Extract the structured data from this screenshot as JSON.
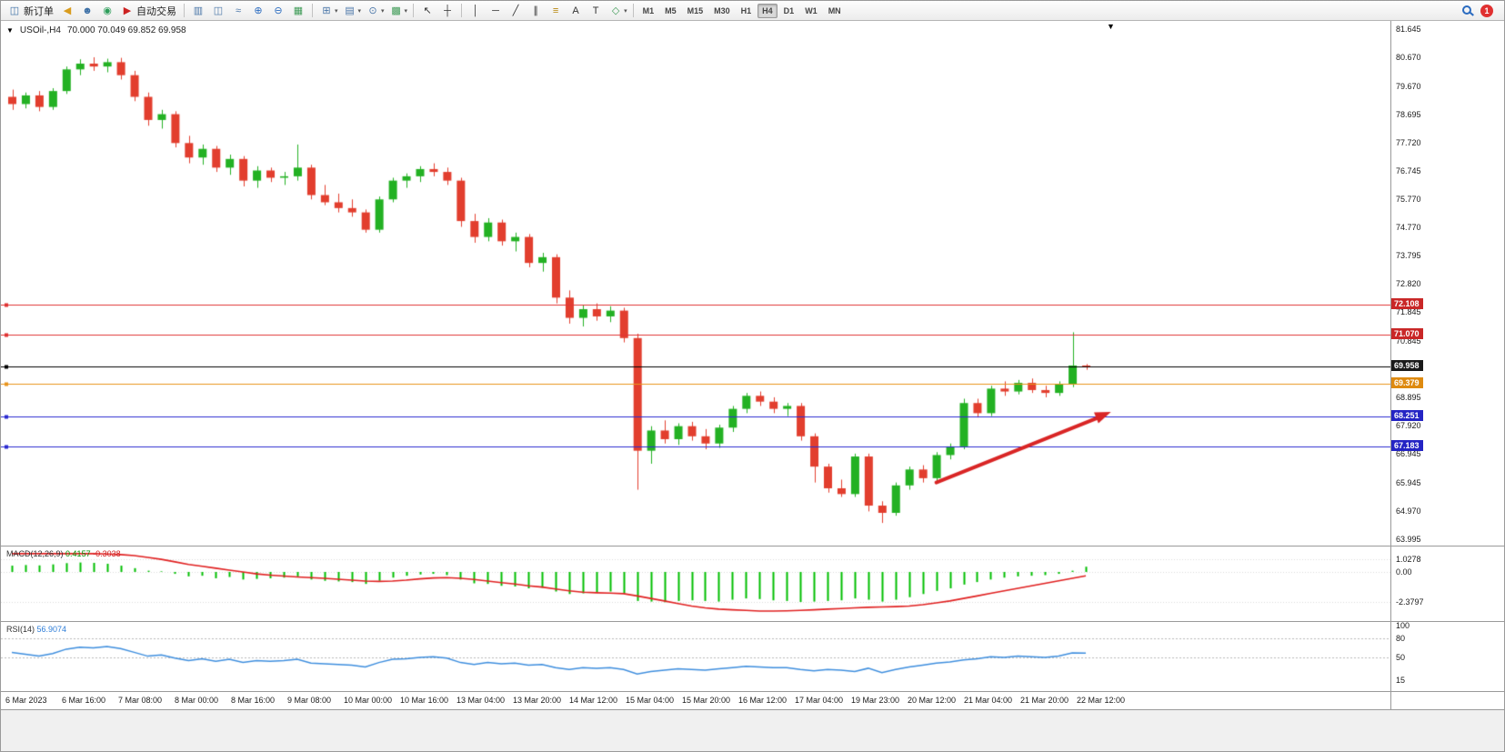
{
  "toolbar": {
    "caret_glyph": "▾",
    "notification_count": "1",
    "timeframes": [
      "M1",
      "M5",
      "M15",
      "M30",
      "H1",
      "H4",
      "D1",
      "W1",
      "MN"
    ],
    "active_timeframe": "H4",
    "items": [
      {
        "kind": "button",
        "name": "new-order-button",
        "icon_name": "new-order-icon",
        "glyph": "◫",
        "color": "#3a6ea5",
        "label": "新订单"
      },
      {
        "kind": "icon",
        "name": "news-horn-icon",
        "glyph": "◀",
        "color": "#d99c1e"
      },
      {
        "kind": "icon",
        "name": "profile-icon",
        "glyph": "☻",
        "color": "#3a6ea5"
      },
      {
        "kind": "icon",
        "name": "community-icon",
        "glyph": "◉",
        "color": "#2e9e5b"
      },
      {
        "kind": "button",
        "name": "autotrading-button",
        "icon_name": "autotrading-icon",
        "glyph": "▶",
        "color": "#cc2222",
        "label": "自动交易"
      },
      {
        "kind": "sep"
      },
      {
        "kind": "icon",
        "name": "bar-chart-icon",
        "glyph": "▥",
        "color": "#4a76a8"
      },
      {
        "kind": "icon",
        "name": "candlestick-chart-icon",
        "glyph": "◫",
        "color": "#4a76a8"
      },
      {
        "kind": "icon",
        "name": "line-chart-icon",
        "glyph": "≈",
        "color": "#4a76a8"
      },
      {
        "kind": "icon",
        "name": "zoom-in-icon",
        "glyph": "⊕",
        "color": "#2a6bc0"
      },
      {
        "kind": "icon",
        "name": "zoom-out-icon",
        "glyph": "⊖",
        "color": "#2a6bc0"
      },
      {
        "kind": "icon",
        "name": "tile-windows-icon",
        "glyph": "▦",
        "color": "#3f9b57"
      },
      {
        "kind": "sep"
      },
      {
        "kind": "icon",
        "name": "new-chart-icon",
        "glyph": "⊞",
        "color": "#4a76a8",
        "caret": true
      },
      {
        "kind": "icon",
        "name": "profiles-icon",
        "glyph": "▤",
        "color": "#4a76a8",
        "caret": true
      },
      {
        "kind": "icon",
        "name": "periods-icon",
        "glyph": "⊙",
        "color": "#4a76a8",
        "caret": true
      },
      {
        "kind": "icon",
        "name": "indicators-icon",
        "glyph": "▩",
        "color": "#3f9b57",
        "caret": true
      },
      {
        "kind": "sep"
      },
      {
        "kind": "icon",
        "name": "cursor-icon",
        "glyph": "↖",
        "color": "#333333"
      },
      {
        "kind": "icon",
        "name": "crosshair-icon",
        "glyph": "┼",
        "color": "#333333"
      },
      {
        "kind": "sep"
      },
      {
        "kind": "icon",
        "name": "vertical-line-icon",
        "glyph": "│",
        "color": "#333333"
      },
      {
        "kind": "icon",
        "name": "horizontal-line-icon",
        "glyph": "─",
        "color": "#333333"
      },
      {
        "kind": "icon",
        "name": "trendline-icon",
        "glyph": "╱",
        "color": "#333333"
      },
      {
        "kind": "icon",
        "name": "equidistant-channel-icon",
        "glyph": "∥",
        "color": "#333333"
      },
      {
        "kind": "icon",
        "name": "fibonacci-icon",
        "glyph": "≡",
        "color": "#b8860b"
      },
      {
        "kind": "icon",
        "name": "text-icon",
        "glyph": "A",
        "color": "#333333"
      },
      {
        "kind": "icon",
        "name": "text-label-icon",
        "glyph": "T",
        "color": "#333333"
      },
      {
        "kind": "icon",
        "name": "arrows-icon",
        "glyph": "◇",
        "color": "#3f9b57",
        "caret": true
      },
      {
        "kind": "sep"
      },
      {
        "kind": "timeframes"
      },
      {
        "kind": "spacer"
      },
      {
        "kind": "search"
      },
      {
        "kind": "badge"
      }
    ]
  },
  "chart": {
    "title": "USOil-,H4",
    "ohlc": "70.000 70.049 69.852 69.958",
    "window_caret": "▼",
    "scroll_marker": "▼"
  },
  "macd": {
    "name": "MACD(12,26,9)",
    "value_main": "0.4157",
    "value_signal": "-0.3038",
    "axis_labels": [
      "1.0278",
      "0.00",
      "-2.3797"
    ]
  },
  "rsi": {
    "name": "RSI(14)",
    "value": "56.9074",
    "axis_labels": [
      "100",
      "80",
      "50",
      "15"
    ],
    "levels": [
      80,
      50
    ]
  },
  "chart_data": {
    "type": "candlestick",
    "symbol": "USOil-",
    "timeframe": "H4",
    "colors": {
      "up": "#23b123",
      "down": "#e23e2e"
    },
    "price_axis_labels": [
      "81.645",
      "80.670",
      "79.670",
      "78.695",
      "77.720",
      "76.745",
      "75.770",
      "74.770",
      "73.795",
      "72.820",
      "71.845",
      "70.845",
      "68.895",
      "67.920",
      "66.945",
      "65.945",
      "64.970",
      "63.995"
    ],
    "hlines": [
      {
        "price": 72.108,
        "label": "72.108",
        "color": "#e03434",
        "box_color": "#c92727"
      },
      {
        "price": 71.07,
        "label": "71.070",
        "color": "#e03434",
        "box_color": "#c92727"
      },
      {
        "price": 69.958,
        "label": "69.958",
        "color": "#000000",
        "box_color": "#1a1a1a"
      },
      {
        "price": 69.379,
        "label": "69.379",
        "color": "#e8941c",
        "box_color": "#de8a10"
      },
      {
        "price": 68.251,
        "label": "68.251",
        "color": "#2a2ad0",
        "box_color": "#2424c4"
      },
      {
        "price": 67.183,
        "label": "67.183",
        "color": "#2a2ad0",
        "box_color": "#2424c4"
      }
    ],
    "trend_arrow": {
      "from_bar": 68,
      "from_price": 65.95,
      "to_bar": 80.6,
      "to_price": 68.35,
      "color": "#d92525",
      "width": 4
    },
    "time_labels": [
      "6 Mar 2023",
      "6 Mar 16:00",
      "7 Mar 08:00",
      "8 Mar 00:00",
      "8 Mar 16:00",
      "9 Mar 08:00",
      "10 Mar 00:00",
      "10 Mar 16:00",
      "13 Mar 04:00",
      "13 Mar 20:00",
      "14 Mar 12:00",
      "15 Mar 04:00",
      "15 Mar 20:00",
      "16 Mar 12:00",
      "17 Mar 04:00",
      "19 Mar 23:00",
      "20 Mar 12:00",
      "21 Mar 04:00",
      "21 Mar 20:00",
      "22 Mar 12:00"
    ],
    "candles": [
      [
        79.3,
        79.55,
        78.85,
        79.05
      ],
      [
        79.05,
        79.45,
        78.9,
        79.35
      ],
      [
        79.35,
        79.5,
        78.8,
        78.95
      ],
      [
        78.95,
        79.6,
        78.85,
        79.5
      ],
      [
        79.5,
        80.35,
        79.4,
        80.25
      ],
      [
        80.25,
        80.6,
        80.05,
        80.45
      ],
      [
        80.45,
        80.67,
        80.2,
        80.35
      ],
      [
        80.35,
        80.62,
        80.15,
        80.5
      ],
      [
        80.5,
        80.65,
        79.9,
        80.05
      ],
      [
        80.05,
        80.2,
        79.15,
        79.3
      ],
      [
        79.3,
        79.45,
        78.3,
        78.5
      ],
      [
        78.5,
        78.85,
        78.2,
        78.7
      ],
      [
        78.7,
        78.8,
        77.55,
        77.7
      ],
      [
        77.7,
        77.95,
        77.0,
        77.2
      ],
      [
        77.2,
        77.65,
        76.95,
        77.5
      ],
      [
        77.5,
        77.6,
        76.7,
        76.85
      ],
      [
        76.85,
        77.3,
        76.6,
        77.15
      ],
      [
        77.15,
        77.25,
        76.2,
        76.4
      ],
      [
        76.4,
        76.9,
        76.15,
        76.75
      ],
      [
        76.75,
        76.85,
        76.35,
        76.5
      ],
      [
        76.5,
        76.7,
        76.25,
        76.55
      ],
      [
        76.55,
        77.65,
        76.4,
        76.85
      ],
      [
        76.85,
        76.95,
        75.75,
        75.9
      ],
      [
        75.9,
        76.25,
        75.55,
        75.65
      ],
      [
        75.65,
        75.95,
        75.3,
        75.45
      ],
      [
        75.45,
        75.75,
        75.15,
        75.3
      ],
      [
        75.3,
        75.4,
        74.6,
        74.7
      ],
      [
        74.7,
        75.85,
        74.6,
        75.75
      ],
      [
        75.75,
        76.5,
        75.65,
        76.4
      ],
      [
        76.4,
        76.65,
        76.15,
        76.55
      ],
      [
        76.55,
        76.9,
        76.35,
        76.8
      ],
      [
        76.8,
        77.0,
        76.55,
        76.7
      ],
      [
        76.7,
        76.85,
        76.25,
        76.4
      ],
      [
        76.4,
        76.5,
        74.8,
        75.0
      ],
      [
        75.0,
        75.25,
        74.25,
        74.45
      ],
      [
        74.45,
        75.1,
        74.3,
        74.95
      ],
      [
        74.95,
        75.05,
        74.15,
        74.3
      ],
      [
        74.3,
        74.6,
        73.95,
        74.45
      ],
      [
        74.45,
        74.55,
        73.4,
        73.55
      ],
      [
        73.55,
        73.9,
        73.25,
        73.75
      ],
      [
        73.75,
        73.85,
        72.15,
        72.35
      ],
      [
        72.35,
        72.6,
        71.45,
        71.65
      ],
      [
        71.65,
        72.1,
        71.35,
        71.95
      ],
      [
        71.95,
        72.15,
        71.55,
        71.7
      ],
      [
        71.7,
        72.05,
        71.5,
        71.9
      ],
      [
        71.9,
        72.0,
        70.8,
        70.95
      ],
      [
        70.95,
        71.1,
        65.7,
        67.05
      ],
      [
        67.05,
        67.9,
        66.6,
        67.75
      ],
      [
        67.75,
        68.1,
        67.3,
        67.45
      ],
      [
        67.45,
        68.0,
        67.25,
        67.9
      ],
      [
        67.9,
        68.05,
        67.4,
        67.55
      ],
      [
        67.55,
        67.8,
        67.1,
        67.3
      ],
      [
        67.3,
        67.95,
        67.15,
        67.85
      ],
      [
        67.85,
        68.6,
        67.7,
        68.5
      ],
      [
        68.5,
        69.05,
        68.35,
        68.95
      ],
      [
        68.95,
        69.1,
        68.6,
        68.75
      ],
      [
        68.75,
        68.9,
        68.35,
        68.5
      ],
      [
        68.5,
        68.7,
        68.25,
        68.6
      ],
      [
        68.6,
        68.7,
        67.4,
        67.55
      ],
      [
        67.55,
        67.65,
        65.95,
        66.5
      ],
      [
        66.5,
        66.6,
        65.6,
        65.75
      ],
      [
        65.75,
        66.05,
        65.45,
        65.55
      ],
      [
        65.55,
        66.95,
        65.45,
        66.85
      ],
      [
        66.85,
        66.95,
        64.95,
        65.15
      ],
      [
        65.15,
        65.3,
        64.55,
        64.9
      ],
      [
        64.9,
        65.95,
        64.8,
        65.85
      ],
      [
        65.85,
        66.5,
        65.7,
        66.4
      ],
      [
        66.4,
        66.55,
        65.95,
        66.1
      ],
      [
        66.1,
        67.0,
        66.0,
        66.9
      ],
      [
        66.9,
        67.3,
        66.75,
        67.2
      ],
      [
        67.2,
        68.85,
        67.1,
        68.7
      ],
      [
        68.7,
        68.85,
        68.2,
        68.35
      ],
      [
        68.35,
        69.3,
        68.25,
        69.2
      ],
      [
        69.2,
        69.45,
        68.95,
        69.1
      ],
      [
        69.1,
        69.5,
        69.0,
        69.4
      ],
      [
        69.4,
        69.55,
        69.05,
        69.15
      ],
      [
        69.15,
        69.3,
        68.9,
        69.05
      ],
      [
        69.05,
        69.45,
        68.95,
        69.35
      ],
      [
        69.35,
        71.15,
        69.25,
        70.0
      ],
      [
        70.0,
        70.049,
        69.852,
        69.958
      ]
    ],
    "macd": {
      "histogram_color": "#00be00",
      "signal_color": "#e02020",
      "histogram": [
        0.5,
        0.55,
        0.52,
        0.6,
        0.7,
        0.75,
        0.72,
        0.65,
        0.5,
        0.3,
        0.1,
        0.05,
        -0.15,
        -0.35,
        -0.3,
        -0.5,
        -0.4,
        -0.6,
        -0.55,
        -0.5,
        -0.45,
        -0.35,
        -0.6,
        -0.7,
        -0.75,
        -0.8,
        -0.95,
        -0.7,
        -0.45,
        -0.3,
        -0.2,
        -0.15,
        -0.25,
        -0.6,
        -0.9,
        -0.95,
        -1.1,
        -1.15,
        -1.3,
        -1.25,
        -1.55,
        -1.75,
        -1.7,
        -1.6,
        -1.55,
        -1.7,
        -2.3,
        -2.35,
        -2.4,
        -2.3,
        -2.25,
        -2.3,
        -2.35,
        -2.2,
        -2.1,
        -2.15,
        -2.25,
        -2.3,
        -2.38,
        -2.35,
        -2.3,
        -2.25,
        -2.1,
        -2.2,
        -2.35,
        -2.2,
        -2.0,
        -1.75,
        -1.5,
        -1.3,
        -1.0,
        -0.8,
        -0.6,
        -0.45,
        -0.35,
        -0.3,
        -0.25,
        -0.15,
        0.1,
        0.4157
      ],
      "signal": [
        1.45,
        1.45,
        1.45,
        1.45,
        1.45,
        1.45,
        1.45,
        1.42,
        1.38,
        1.3,
        1.15,
        1.0,
        0.8,
        0.6,
        0.45,
        0.3,
        0.15,
        0.0,
        -0.15,
        -0.25,
        -0.33,
        -0.4,
        -0.45,
        -0.5,
        -0.58,
        -0.65,
        -0.72,
        -0.75,
        -0.72,
        -0.65,
        -0.55,
        -0.48,
        -0.45,
        -0.5,
        -0.6,
        -0.72,
        -0.85,
        -0.95,
        -1.1,
        -1.2,
        -1.35,
        -1.5,
        -1.6,
        -1.65,
        -1.68,
        -1.72,
        -1.9,
        -2.1,
        -2.3,
        -2.5,
        -2.7,
        -2.85,
        -2.95,
        -3.0,
        -3.05,
        -3.1,
        -3.1,
        -3.08,
        -3.05,
        -3.0,
        -2.95,
        -2.9,
        -2.85,
        -2.8,
        -2.78,
        -2.75,
        -2.7,
        -2.6,
        -2.45,
        -2.3,
        -2.1,
        -1.9,
        -1.7,
        -1.5,
        -1.3,
        -1.1,
        -0.9,
        -0.7,
        -0.5,
        -0.3038
      ]
    },
    "rsi": {
      "color": "#3e8ede",
      "values": [
        58,
        55,
        52,
        56,
        63,
        66,
        65,
        67,
        64,
        58,
        52,
        54,
        49,
        45,
        48,
        44,
        47,
        42,
        45,
        44,
        45,
        47,
        41,
        40,
        39,
        38,
        35,
        42,
        47,
        48,
        50,
        51,
        49,
        42,
        39,
        42,
        40,
        41,
        38,
        39,
        34,
        31,
        34,
        33,
        34,
        31,
        24,
        28,
        30,
        32,
        31,
        30,
        32,
        34,
        36,
        35,
        34,
        34,
        31,
        29,
        31,
        30,
        28,
        33,
        26,
        31,
        35,
        38,
        41,
        43,
        46,
        48,
        51,
        50,
        52,
        51,
        50,
        52,
        57,
        56.9
      ]
    }
  }
}
